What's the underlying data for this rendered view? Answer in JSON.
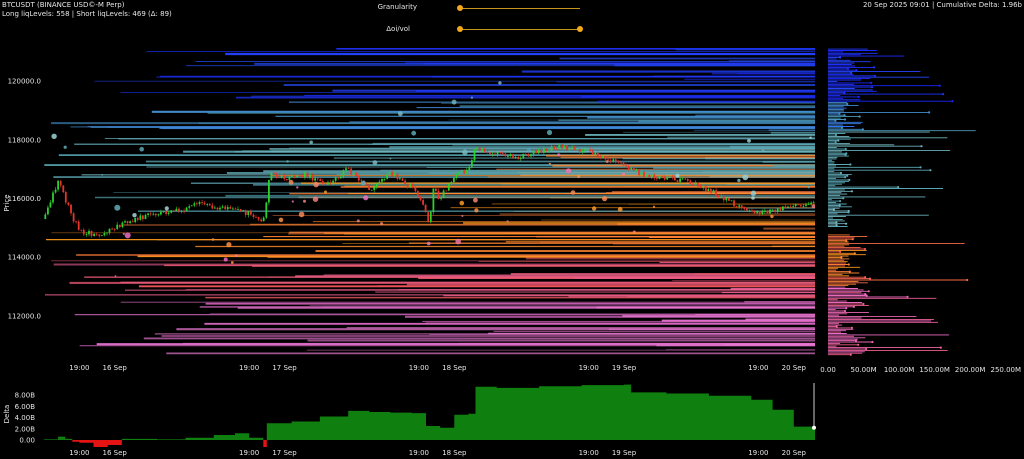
{
  "header": {
    "symbol_line": "BTCUSDT (BINANCE USD©-M Perp)",
    "levels_line": "Long liqLevels: 558 | Short liqLevels: 469 (Δ: 89)",
    "timestamp_line": "20 Sep 2025 09:01 | Cumulative Delta: 1.96b"
  },
  "controls": {
    "granularity_label": "Granularity",
    "granularity_value": 0.0,
    "oivol_label": "Δoi/vol",
    "oivol_range": [
      0.0,
      1.0
    ]
  },
  "colors": {
    "background": "#000000",
    "candle_up": "#2bd12b",
    "candle_down": "#e6362b",
    "short_band_top": "#1a22ff",
    "short_band_mid": "#2f6fff",
    "short_band_low": "#4fa0b0",
    "long_band_top": "#ff9a1a",
    "long_band_mid": "#f2555a",
    "long_band_low": "#ea6ccf",
    "delta_positive": "#0f7f0f",
    "delta_negative": "#e51414",
    "slider": "#f3a81a"
  },
  "chart_data": [
    {
      "type": "candlestick",
      "title": "",
      "ylabel": "Price",
      "ylim": [
        110600,
        121200
      ],
      "yticks": [
        112000,
        114000,
        116000,
        118000,
        120000
      ],
      "ytick_labels": [
        "112000.0",
        "114000.0",
        "116000.0",
        "118000.0",
        "120000.0"
      ],
      "xtick_labels": [
        "19:00",
        "16 Sep",
        "19:00",
        "17 Sep",
        "19:00",
        "18 Sep",
        "19:00",
        "19 Sep",
        "19:00",
        "20 Sep"
      ],
      "price_path": [
        [
          "15 Sep 14:00",
          115300
        ],
        [
          "15 Sep 16:00",
          116600
        ],
        [
          "15 Sep 18:00",
          115400
        ],
        [
          "15 Sep 19:00",
          114900
        ],
        [
          "15 Sep 22:00",
          114700
        ],
        [
          "16 Sep 00:00",
          115000
        ],
        [
          "16 Sep 03:00",
          115300
        ],
        [
          "16 Sep 06:00",
          115500
        ],
        [
          "16 Sep 09:00",
          115600
        ],
        [
          "16 Sep 12:00",
          115800
        ],
        [
          "16 Sep 15:00",
          115700
        ],
        [
          "16 Sep 19:00",
          115500
        ],
        [
          "16 Sep 21:00",
          115200
        ],
        [
          "16 Sep 22:00",
          116900
        ],
        [
          "17 Sep 00:00",
          116700
        ],
        [
          "17 Sep 03:00",
          116800
        ],
        [
          "17 Sep 06:00",
          116500
        ],
        [
          "17 Sep 09:00",
          117000
        ],
        [
          "17 Sep 12:00",
          116300
        ],
        [
          "17 Sep 15:00",
          116900
        ],
        [
          "17 Sep 18:00",
          116400
        ],
        [
          "17 Sep 19:00",
          116000
        ],
        [
          "17 Sep 20:00",
          115600
        ],
        [
          "17 Sep 20:30",
          115000
        ],
        [
          "17 Sep 21:00",
          116300
        ],
        [
          "17 Sep 22:00",
          116000
        ],
        [
          "18 Sep 00:00",
          116800
        ],
        [
          "18 Sep 02:00",
          117000
        ],
        [
          "18 Sep 03:00",
          117700
        ],
        [
          "18 Sep 06:00",
          117500
        ],
        [
          "18 Sep 09:00",
          117400
        ],
        [
          "18 Sep 12:00",
          117600
        ],
        [
          "18 Sep 15:00",
          117800
        ],
        [
          "18 Sep 19:00",
          117600
        ],
        [
          "18 Sep 22:00",
          117300
        ],
        [
          "19 Sep 00:00",
          117100
        ],
        [
          "19 Sep 03:00",
          116800
        ],
        [
          "19 Sep 06:00",
          116700
        ],
        [
          "19 Sep 09:00",
          116600
        ],
        [
          "19 Sep 12:00",
          116300
        ],
        [
          "19 Sep 15:00",
          115900
        ],
        [
          "19 Sep 18:00",
          115500
        ],
        [
          "19 Sep 21:00",
          115600
        ],
        [
          "20 Sep 00:00",
          115800
        ],
        [
          "20 Sep 03:00",
          115800
        ]
      ]
    },
    {
      "type": "bar",
      "title": "",
      "orientation": "horizontal",
      "description": "liquidation volume by price level",
      "xtick_labels": [
        "0.00",
        "50.00M",
        "100.00M",
        "150.00M",
        "200.00M",
        "250.00M"
      ],
      "xlim": [
        0,
        270
      ]
    },
    {
      "type": "area",
      "title": "",
      "ylabel": "Delta",
      "ylim": [
        -1.5,
        10
      ],
      "yticks": [
        0,
        2,
        4,
        6,
        8
      ],
      "ytick_labels": [
        "0.00",
        "2.00B",
        "4.00B",
        "6.00B",
        "8.00B"
      ],
      "xtick_labels": [
        "19:00",
        "16 Sep",
        "19:00",
        "17 Sep",
        "19:00",
        "18 Sep",
        "19:00",
        "19 Sep",
        "19:00",
        "20 Sep"
      ],
      "series": [
        {
          "values": [
            [
              "15 Sep 14:00",
              0.1
            ],
            [
              "15 Sep 16:00",
              0.6
            ],
            [
              "15 Sep 17:00",
              0.2
            ],
            [
              "15 Sep 18:00",
              -0.3
            ],
            [
              "15 Sep 19:00",
              -0.5
            ],
            [
              "15 Sep 21:00",
              -1.4
            ],
            [
              "15 Sep 23:00",
              -0.9
            ],
            [
              "16 Sep 01:00",
              0.2
            ],
            [
              "16 Sep 06:00",
              0.1
            ],
            [
              "16 Sep 10:00",
              0.4
            ],
            [
              "16 Sep 14:00",
              0.9
            ],
            [
              "16 Sep 17:00",
              1.2
            ],
            [
              "16 Sep 19:00",
              0.4
            ],
            [
              "16 Sep 21:00",
              -1.3
            ],
            [
              "16 Sep 21:30",
              3.0
            ],
            [
              "17 Sep 01:00",
              3.3
            ],
            [
              "17 Sep 05:00",
              4.2
            ],
            [
              "17 Sep 09:00",
              5.2
            ],
            [
              "17 Sep 12:00",
              5.0
            ],
            [
              "17 Sep 15:00",
              4.9
            ],
            [
              "17 Sep 18:00",
              4.8
            ],
            [
              "17 Sep 20:00",
              2.5
            ],
            [
              "17 Sep 22:00",
              2.2
            ],
            [
              "18 Sep 00:00",
              4.5
            ],
            [
              "18 Sep 02:00",
              4.7
            ],
            [
              "18 Sep 03:00",
              9.5
            ],
            [
              "18 Sep 06:00",
              9.3
            ],
            [
              "18 Sep 12:00",
              9.6
            ],
            [
              "18 Sep 18:00",
              9.8
            ],
            [
              "19 Sep 00:00",
              9.9
            ],
            [
              "19 Sep 01:00",
              8.5
            ],
            [
              "19 Sep 06:00",
              8.3
            ],
            [
              "19 Sep 12:00",
              7.9
            ],
            [
              "19 Sep 18:00",
              7.2
            ],
            [
              "19 Sep 21:00",
              5.4
            ],
            [
              "20 Sep 00:00",
              2.4
            ],
            [
              "20 Sep 03:00",
              2.2
            ]
          ]
        }
      ]
    }
  ]
}
